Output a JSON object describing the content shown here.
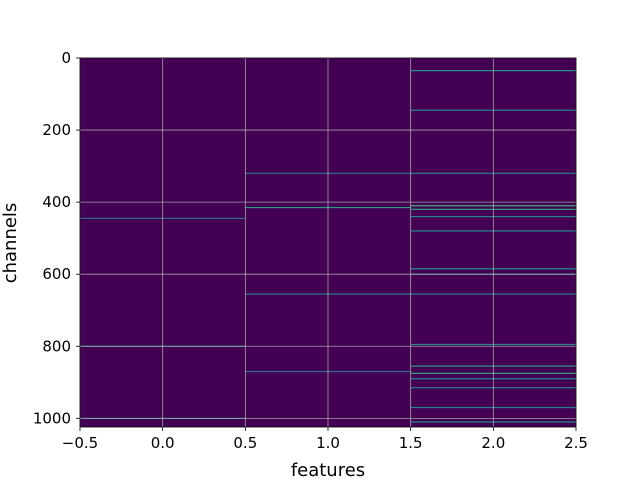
{
  "chart_data": {
    "type": "heatmap",
    "title": "",
    "xlabel": "features",
    "ylabel": "channels",
    "x_range": [
      -0.5,
      2.5
    ],
    "y_range": [
      1024,
      0
    ],
    "y_inverted": true,
    "columns": [
      0,
      1,
      2
    ],
    "rows": 1024,
    "colormap": "viridis",
    "background_value_color": "#440154",
    "grid": true,
    "x_ticks": [
      -0.5,
      0.0,
      0.5,
      1.0,
      1.5,
      2.0,
      2.5
    ],
    "x_tick_labels": [
      "−0.5",
      "0.0",
      "0.5",
      "1.0",
      "1.5",
      "2.0",
      "2.5"
    ],
    "y_ticks": [
      0,
      200,
      400,
      600,
      800,
      1000
    ],
    "y_tick_labels": [
      "0",
      "200",
      "400",
      "600",
      "800",
      "1000"
    ],
    "highlighted_channels": [
      {
        "column": 0,
        "channel": 445,
        "value": 0.35
      },
      {
        "column": 0,
        "channel": 800,
        "value": 0.45
      },
      {
        "column": 0,
        "channel": 1000,
        "value": 0.4
      },
      {
        "column": 1,
        "channel": 320,
        "value": 0.35
      },
      {
        "column": 1,
        "channel": 415,
        "value": 0.55
      },
      {
        "column": 1,
        "channel": 655,
        "value": 0.45
      },
      {
        "column": 1,
        "channel": 870,
        "value": 0.35
      },
      {
        "column": 2,
        "channel": 35,
        "value": 0.5
      },
      {
        "column": 2,
        "channel": 145,
        "value": 0.45
      },
      {
        "column": 2,
        "channel": 320,
        "value": 0.45
      },
      {
        "column": 2,
        "channel": 410,
        "value": 0.65
      },
      {
        "column": 2,
        "channel": 420,
        "value": 0.55
      },
      {
        "column": 2,
        "channel": 440,
        "value": 0.45
      },
      {
        "column": 2,
        "channel": 480,
        "value": 0.45
      },
      {
        "column": 2,
        "channel": 585,
        "value": 0.5
      },
      {
        "column": 2,
        "channel": 600,
        "value": 0.45
      },
      {
        "column": 2,
        "channel": 655,
        "value": 0.45
      },
      {
        "column": 2,
        "channel": 795,
        "value": 0.45
      },
      {
        "column": 2,
        "channel": 855,
        "value": 0.55
      },
      {
        "column": 2,
        "channel": 875,
        "value": 0.6
      },
      {
        "column": 2,
        "channel": 890,
        "value": 0.5
      },
      {
        "column": 2,
        "channel": 915,
        "value": 0.45
      },
      {
        "column": 2,
        "channel": 970,
        "value": 0.45
      },
      {
        "column": 2,
        "channel": 1010,
        "value": 0.5
      }
    ]
  }
}
